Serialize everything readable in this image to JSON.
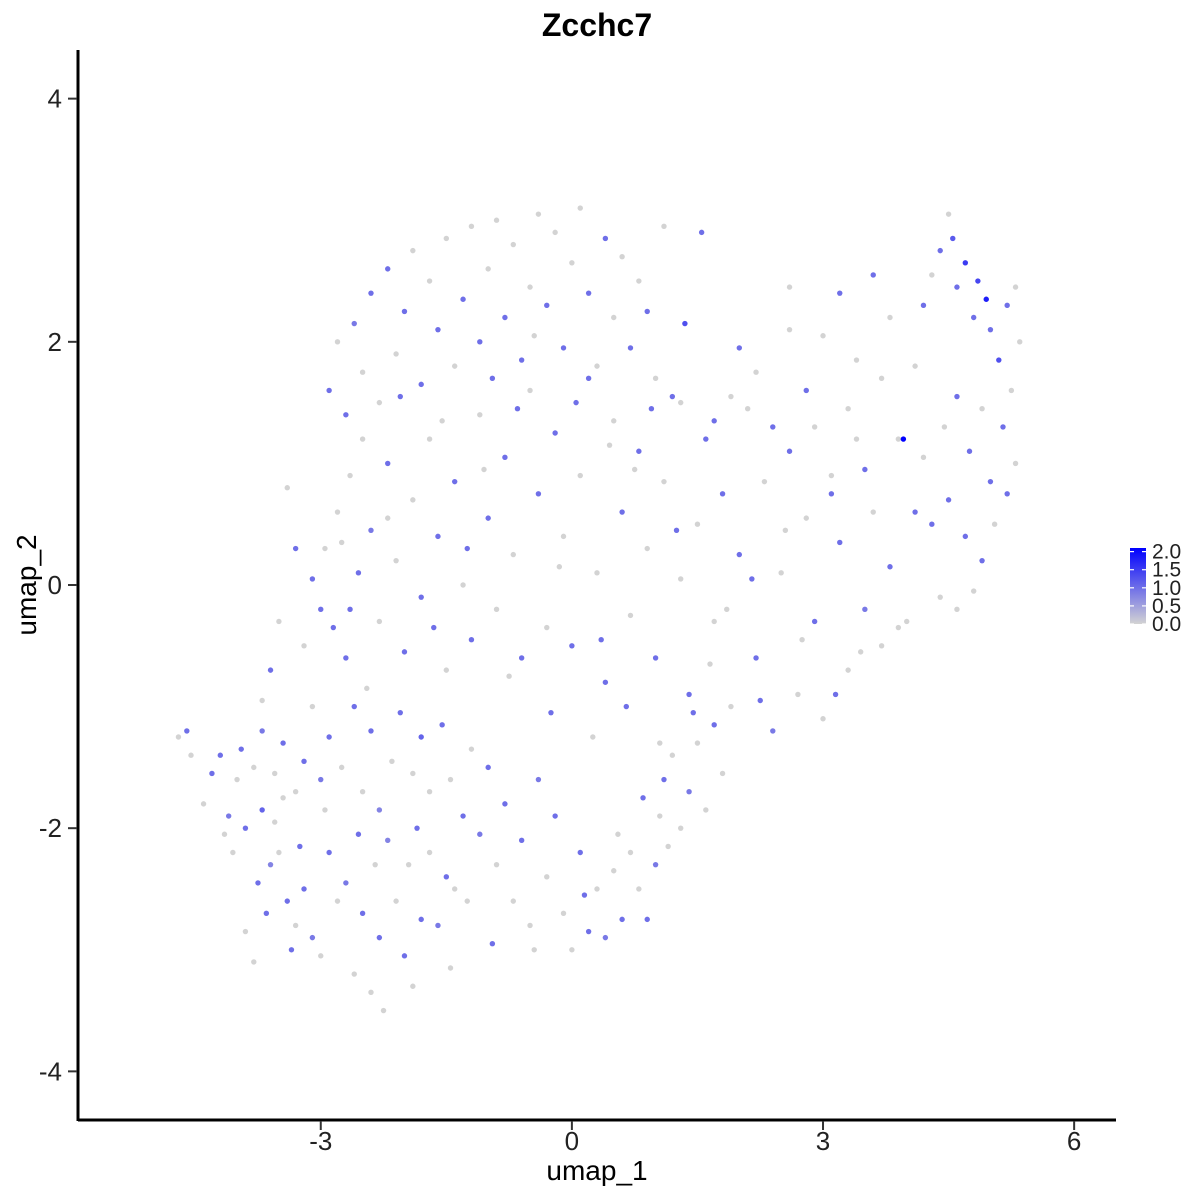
{
  "chart_data": {
    "type": "scatter",
    "title": "Zcchc7",
    "xlabel": "umap_1",
    "ylabel": "umap_2",
    "xlim": [
      -5.9,
      6.5
    ],
    "ylim": [
      -4.4,
      4.4
    ],
    "xticks": [
      -3,
      0,
      3,
      6
    ],
    "xtick_labels": [
      "-3",
      "0",
      "3",
      "6"
    ],
    "yticks": [
      -4,
      -2,
      0,
      2,
      4
    ],
    "ytick_labels": [
      "-4",
      "-2",
      "0",
      "2",
      "4"
    ],
    "grid": false,
    "legend": {
      "placement": "right",
      "type": "colorbar",
      "min": 0.0,
      "max": 2.1,
      "ticks": [
        0.0,
        0.5,
        1.0,
        1.5,
        2.0
      ],
      "tick_labels": [
        "0.0",
        "0.5",
        "1.0",
        "1.5",
        "2.0"
      ],
      "color_low": "#d3d3d3",
      "color_high": "#0000ff"
    },
    "points": [
      [
        -4.6,
        -1.2,
        1.0
      ],
      [
        -4.7,
        -1.25,
        0.0
      ],
      [
        -4.55,
        -1.4,
        0.0
      ],
      [
        -4.4,
        -1.8,
        0.0
      ],
      [
        -4.2,
        -1.4,
        1.0
      ],
      [
        -4.1,
        -1.9,
        0.9
      ],
      [
        -4.05,
        -2.2,
        0.0
      ],
      [
        -3.9,
        -2.0,
        1.0
      ],
      [
        -3.7,
        -1.85,
        1.1
      ],
      [
        -3.6,
        -2.3,
        0.8
      ],
      [
        -3.5,
        -2.2,
        0.0
      ],
      [
        -3.4,
        -2.6,
        1.0
      ],
      [
        -3.3,
        -2.8,
        0.0
      ],
      [
        -3.2,
        -2.5,
        1.0
      ],
      [
        -3.1,
        -2.9,
        0.9
      ],
      [
        -3.0,
        -3.05,
        0.0
      ],
      [
        -2.9,
        -2.2,
        1.0
      ],
      [
        -2.8,
        -2.6,
        0.0
      ],
      [
        -2.7,
        -2.45,
        0.9
      ],
      [
        -2.6,
        -3.2,
        0.0
      ],
      [
        -2.5,
        -2.7,
        1.0
      ],
      [
        -2.4,
        -3.35,
        0.0
      ],
      [
        -2.3,
        -2.9,
        1.0
      ],
      [
        -2.25,
        -3.5,
        0.0
      ],
      [
        -2.2,
        -2.1,
        0.8
      ],
      [
        -2.1,
        -2.6,
        0.0
      ],
      [
        -2.0,
        -3.05,
        1.0
      ],
      [
        -1.95,
        -2.3,
        0.0
      ],
      [
        -1.9,
        -3.3,
        0.0
      ],
      [
        -1.8,
        -2.75,
        1.0
      ],
      [
        -1.7,
        -2.2,
        0.0
      ],
      [
        -1.6,
        -2.8,
        0.9
      ],
      [
        -1.5,
        -2.4,
        1.0
      ],
      [
        -1.45,
        -3.15,
        0.0
      ],
      [
        -1.4,
        -2.5,
        0.0
      ],
      [
        -3.9,
        -2.85,
        0.0
      ],
      [
        -3.8,
        -3.1,
        0.0
      ],
      [
        -3.65,
        -2.7,
        1.0
      ],
      [
        -3.45,
        -1.75,
        0.0
      ],
      [
        -3.35,
        -3.0,
        1.0
      ],
      [
        -4.0,
        -1.6,
        0.0
      ],
      [
        -3.95,
        -1.35,
        1.0
      ],
      [
        -3.8,
        -1.5,
        0.0
      ],
      [
        -3.7,
        -1.2,
        0.9
      ],
      [
        -3.55,
        -1.55,
        0.0
      ],
      [
        -3.45,
        -1.3,
        1.0
      ],
      [
        -3.3,
        -1.7,
        0.0
      ],
      [
        -3.2,
        -1.45,
        1.0
      ],
      [
        -3.1,
        -1.0,
        0.0
      ],
      [
        -3.0,
        -1.6,
        0.9
      ],
      [
        -2.9,
        -1.25,
        1.0
      ],
      [
        -2.75,
        -1.5,
        0.0
      ],
      [
        -2.6,
        -1.0,
        1.0
      ],
      [
        -2.5,
        -1.7,
        0.0
      ],
      [
        -2.4,
        -1.2,
        1.0
      ],
      [
        -2.3,
        -1.85,
        0.8
      ],
      [
        -2.15,
        -1.45,
        0.0
      ],
      [
        -2.05,
        -1.05,
        1.0
      ],
      [
        -1.9,
        -1.55,
        0.0
      ],
      [
        -1.8,
        -1.25,
        1.1
      ],
      [
        -1.7,
        -1.7,
        0.0
      ],
      [
        -1.55,
        -1.15,
        1.0
      ],
      [
        -1.45,
        -1.6,
        0.0
      ],
      [
        -1.3,
        -1.9,
        1.0
      ],
      [
        -1.2,
        -1.35,
        0.0
      ],
      [
        -1.1,
        -2.05,
        0.9
      ],
      [
        -1.0,
        -1.5,
        1.0
      ],
      [
        -0.9,
        -2.3,
        0.0
      ],
      [
        -0.8,
        -1.8,
        1.0
      ],
      [
        -0.7,
        -2.6,
        0.0
      ],
      [
        -0.6,
        -2.1,
        1.0
      ],
      [
        -0.5,
        -2.8,
        0.0
      ],
      [
        -0.4,
        -1.6,
        0.9
      ],
      [
        -0.3,
        -2.4,
        0.0
      ],
      [
        -0.2,
        -1.9,
        1.0
      ],
      [
        -0.1,
        -2.7,
        0.0
      ],
      [
        0.0,
        -3.0,
        0.0
      ],
      [
        0.1,
        -2.2,
        1.0
      ],
      [
        0.2,
        -2.85,
        1.0
      ],
      [
        0.3,
        -2.5,
        0.0
      ],
      [
        0.4,
        -2.9,
        0.9
      ],
      [
        0.5,
        -2.35,
        0.0
      ],
      [
        0.6,
        -2.75,
        1.0
      ],
      [
        0.7,
        -2.2,
        0.0
      ],
      [
        0.8,
        -2.5,
        0.0
      ],
      [
        0.9,
        -2.75,
        1.0
      ],
      [
        1.0,
        -2.3,
        0.9
      ],
      [
        1.05,
        -1.9,
        0.0
      ],
      [
        1.1,
        -1.6,
        1.0
      ],
      [
        1.2,
        -1.4,
        0.0
      ],
      [
        1.3,
        -2.0,
        0.0
      ],
      [
        1.4,
        -1.7,
        0.9
      ],
      [
        1.5,
        -1.3,
        0.0
      ],
      [
        1.6,
        -1.85,
        0.0
      ],
      [
        1.7,
        -1.15,
        1.0
      ],
      [
        1.8,
        -1.55,
        0.0
      ],
      [
        -3.0,
        -0.2,
        1.0
      ],
      [
        -2.95,
        0.3,
        0.0
      ],
      [
        -2.85,
        -0.35,
        1.0
      ],
      [
        -2.8,
        0.6,
        0.0
      ],
      [
        -2.7,
        -0.6,
        1.0
      ],
      [
        -2.65,
        0.9,
        0.0
      ],
      [
        -2.55,
        0.1,
        1.0
      ],
      [
        -2.45,
        -0.85,
        0.0
      ],
      [
        -2.4,
        0.45,
        0.9
      ],
      [
        -2.3,
        -0.3,
        0.0
      ],
      [
        -2.2,
        1.0,
        1.0
      ],
      [
        -2.1,
        0.2,
        0.0
      ],
      [
        -2.0,
        -0.55,
        1.0
      ],
      [
        -1.9,
        0.7,
        0.0
      ],
      [
        -1.8,
        -0.1,
        1.0
      ],
      [
        -1.7,
        1.2,
        0.0
      ],
      [
        -1.6,
        0.4,
        1.0
      ],
      [
        -1.5,
        -0.7,
        0.0
      ],
      [
        -1.4,
        0.85,
        1.0
      ],
      [
        -1.3,
        0.0,
        0.0
      ],
      [
        -1.2,
        -0.45,
        1.0
      ],
      [
        -1.1,
        1.4,
        0.0
      ],
      [
        -1.0,
        0.55,
        1.0
      ],
      [
        -0.9,
        -0.2,
        0.0
      ],
      [
        -0.8,
        1.05,
        1.0
      ],
      [
        -0.7,
        0.25,
        0.0
      ],
      [
        -0.6,
        -0.6,
        1.0
      ],
      [
        -0.5,
        1.6,
        0.0
      ],
      [
        -0.4,
        0.75,
        1.0
      ],
      [
        -0.3,
        -0.35,
        0.0
      ],
      [
        -0.2,
        1.25,
        1.0
      ],
      [
        -0.1,
        0.4,
        0.0
      ],
      [
        0.0,
        -0.5,
        1.0
      ],
      [
        0.1,
        0.9,
        0.0
      ],
      [
        0.2,
        1.7,
        1.0
      ],
      [
        0.3,
        0.1,
        0.0
      ],
      [
        0.4,
        -0.8,
        1.0
      ],
      [
        0.5,
        1.35,
        0.0
      ],
      [
        0.6,
        0.6,
        1.0
      ],
      [
        0.7,
        -0.25,
        0.0
      ],
      [
        0.8,
        1.1,
        1.0
      ],
      [
        0.9,
        0.3,
        0.0
      ],
      [
        1.0,
        -0.6,
        1.0
      ],
      [
        1.1,
        0.85,
        0.0
      ],
      [
        1.2,
        1.55,
        1.0
      ],
      [
        1.3,
        0.05,
        0.0
      ],
      [
        1.4,
        -0.9,
        1.0
      ],
      [
        1.5,
        0.5,
        0.0
      ],
      [
        1.6,
        1.2,
        1.0
      ],
      [
        1.7,
        -0.3,
        0.0
      ],
      [
        1.8,
        0.75,
        1.0
      ],
      [
        1.9,
        -1.0,
        0.0
      ],
      [
        2.0,
        0.25,
        1.0
      ],
      [
        2.1,
        1.45,
        0.0
      ],
      [
        2.2,
        -0.6,
        1.0
      ],
      [
        2.3,
        0.85,
        0.0
      ],
      [
        2.4,
        -1.2,
        0.9
      ],
      [
        2.5,
        0.1,
        0.0
      ],
      [
        2.6,
        1.1,
        1.0
      ],
      [
        2.7,
        -0.9,
        0.0
      ],
      [
        2.8,
        0.55,
        0.0
      ],
      [
        2.9,
        -0.3,
        1.0
      ],
      [
        3.0,
        -1.1,
        0.0
      ],
      [
        3.1,
        0.9,
        0.0
      ],
      [
        3.2,
        0.35,
        1.0
      ],
      [
        3.3,
        -0.7,
        0.0
      ],
      [
        3.4,
        1.2,
        0.0
      ],
      [
        3.5,
        -0.2,
        0.9
      ],
      [
        3.6,
        0.6,
        0.0
      ],
      [
        3.7,
        -0.5,
        0.0
      ],
      [
        3.8,
        0.15,
        1.0
      ],
      [
        3.9,
        -0.35,
        0.0
      ],
      [
        -2.9,
        1.6,
        1.0
      ],
      [
        -2.8,
        2.0,
        0.0
      ],
      [
        -2.7,
        1.4,
        1.0
      ],
      [
        -2.6,
        2.15,
        0.9
      ],
      [
        -2.5,
        1.75,
        0.0
      ],
      [
        -2.4,
        2.4,
        1.0
      ],
      [
        -2.3,
        1.5,
        0.0
      ],
      [
        -2.2,
        2.6,
        1.0
      ],
      [
        -2.1,
        1.9,
        0.0
      ],
      [
        -2.0,
        2.25,
        1.0
      ],
      [
        -1.9,
        2.75,
        0.0
      ],
      [
        -1.8,
        1.65,
        1.0
      ],
      [
        -1.7,
        2.5,
        0.0
      ],
      [
        -1.6,
        2.1,
        1.0
      ],
      [
        -1.5,
        2.85,
        0.0
      ],
      [
        -1.4,
        1.8,
        0.0
      ],
      [
        -1.3,
        2.35,
        1.0
      ],
      [
        -1.2,
        2.95,
        0.0
      ],
      [
        -1.1,
        2.0,
        1.0
      ],
      [
        -1.0,
        2.6,
        0.0
      ],
      [
        -0.9,
        3.0,
        0.0
      ],
      [
        -0.8,
        2.2,
        1.0
      ],
      [
        -0.7,
        2.8,
        0.0
      ],
      [
        -0.6,
        1.85,
        1.0
      ],
      [
        -0.5,
        2.45,
        0.0
      ],
      [
        -0.4,
        3.05,
        0.0
      ],
      [
        -0.3,
        2.3,
        1.0
      ],
      [
        -0.2,
        2.9,
        0.0
      ],
      [
        -0.1,
        1.95,
        1.0
      ],
      [
        0.0,
        2.65,
        0.0
      ],
      [
        0.1,
        3.1,
        0.0
      ],
      [
        0.2,
        2.4,
        1.0
      ],
      [
        0.3,
        1.8,
        0.0
      ],
      [
        0.4,
        2.85,
        1.0
      ],
      [
        0.5,
        2.2,
        0.0
      ],
      [
        0.6,
        2.7,
        0.0
      ],
      [
        0.7,
        1.95,
        1.0
      ],
      [
        0.8,
        2.5,
        0.0
      ],
      [
        0.9,
        2.25,
        1.0
      ],
      [
        1.0,
        1.7,
        0.0
      ],
      [
        1.1,
        2.95,
        0.0
      ],
      [
        1.35,
        2.15,
        1.3
      ],
      [
        1.55,
        2.9,
        1.0
      ],
      [
        1.3,
        1.5,
        0.0
      ],
      [
        1.7,
        1.35,
        1.0
      ],
      [
        1.9,
        1.55,
        0.0
      ],
      [
        2.0,
        1.95,
        1.0
      ],
      [
        2.2,
        1.75,
        0.0
      ],
      [
        2.4,
        1.3,
        1.0
      ],
      [
        2.6,
        2.1,
        0.0
      ],
      [
        2.8,
        1.6,
        1.0
      ],
      [
        3.0,
        2.05,
        0.0
      ],
      [
        3.2,
        2.4,
        1.0
      ],
      [
        3.4,
        1.85,
        0.0
      ],
      [
        3.6,
        2.55,
        1.0
      ],
      [
        3.8,
        2.2,
        0.0
      ],
      [
        2.6,
        2.45,
        0.0
      ],
      [
        2.9,
        1.3,
        0.0
      ],
      [
        3.1,
        0.75,
        1.0
      ],
      [
        3.3,
        1.45,
        0.0
      ],
      [
        3.5,
        0.95,
        1.0
      ],
      [
        3.7,
        1.7,
        0.0
      ],
      [
        3.9,
        1.2,
        0.0
      ],
      [
        3.96,
        1.2,
        2.1
      ],
      [
        4.1,
        1.8,
        0.0
      ],
      [
        4.2,
        2.3,
        1.0
      ],
      [
        4.3,
        2.55,
        0.0
      ],
      [
        4.4,
        2.75,
        1.0
      ],
      [
        4.5,
        3.05,
        0.0
      ],
      [
        4.55,
        2.85,
        1.2
      ],
      [
        4.6,
        2.45,
        1.0
      ],
      [
        4.7,
        2.65,
        1.5
      ],
      [
        4.8,
        2.2,
        1.0
      ],
      [
        4.85,
        2.5,
        1.4
      ],
      [
        4.95,
        2.35,
        1.8
      ],
      [
        5.0,
        2.1,
        1.0
      ],
      [
        5.1,
        1.85,
        1.3
      ],
      [
        5.2,
        2.3,
        1.0
      ],
      [
        5.3,
        2.45,
        0.0
      ],
      [
        5.35,
        2.0,
        0.0
      ],
      [
        5.25,
        1.6,
        0.0
      ],
      [
        5.15,
        1.3,
        1.0
      ],
      [
        5.3,
        1.0,
        0.0
      ],
      [
        5.2,
        0.75,
        1.0
      ],
      [
        5.05,
        0.5,
        0.0
      ],
      [
        4.9,
        0.2,
        1.0
      ],
      [
        4.8,
        -0.05,
        0.0
      ],
      [
        4.7,
        0.4,
        1.0
      ],
      [
        4.6,
        -0.2,
        0.0
      ],
      [
        4.5,
        0.7,
        1.0
      ],
      [
        4.4,
        -0.1,
        0.0
      ],
      [
        4.3,
        0.5,
        1.0
      ],
      [
        4.2,
        1.05,
        0.0
      ],
      [
        4.1,
        0.6,
        1.0
      ],
      [
        4.0,
        -0.3,
        0.0
      ],
      [
        4.6,
        1.55,
        1.0
      ],
      [
        4.45,
        1.3,
        0.0
      ],
      [
        4.75,
        1.1,
        1.0
      ],
      [
        4.9,
        1.45,
        0.0
      ],
      [
        5.0,
        0.85,
        1.0
      ],
      [
        -4.3,
        -1.55,
        1.0
      ],
      [
        -4.15,
        -2.05,
        0.0
      ],
      [
        -3.75,
        -2.45,
        1.0
      ],
      [
        -3.55,
        -1.95,
        0.0
      ],
      [
        -3.25,
        -2.15,
        1.0
      ],
      [
        -2.95,
        -1.85,
        0.0
      ],
      [
        -2.55,
        -2.05,
        1.0
      ],
      [
        -2.35,
        -2.3,
        0.0
      ],
      [
        -1.85,
        -2.0,
        1.0
      ],
      [
        -1.25,
        -2.6,
        0.0
      ],
      [
        -0.95,
        -2.95,
        1.0
      ],
      [
        -0.45,
        -3.0,
        0.0
      ],
      [
        0.15,
        -2.55,
        1.0
      ],
      [
        0.55,
        -2.05,
        0.0
      ],
      [
        0.85,
        -1.75,
        1.0
      ],
      [
        1.15,
        -2.15,
        0.0
      ],
      [
        -2.65,
        -0.2,
        1.0
      ],
      [
        -2.2,
        0.55,
        0.0
      ],
      [
        -1.65,
        -0.35,
        1.0
      ],
      [
        -1.05,
        0.95,
        0.0
      ],
      [
        -0.65,
        1.45,
        1.0
      ],
      [
        -0.15,
        0.15,
        0.0
      ],
      [
        0.35,
        -0.45,
        1.0
      ],
      [
        0.75,
        0.95,
        0.0
      ],
      [
        1.25,
        0.45,
        1.0
      ],
      [
        1.65,
        -0.65,
        0.0
      ],
      [
        2.15,
        0.05,
        1.0
      ],
      [
        2.55,
        0.45,
        0.0
      ],
      [
        -2.5,
        1.2,
        0.0
      ],
      [
        -2.05,
        1.55,
        1.0
      ],
      [
        -1.55,
        1.35,
        0.0
      ],
      [
        -0.95,
        1.7,
        1.0
      ],
      [
        -0.45,
        2.05,
        0.0
      ],
      [
        0.05,
        1.5,
        1.0
      ],
      [
        0.45,
        1.15,
        0.0
      ],
      [
        0.95,
        1.45,
        1.0
      ],
      [
        -1.25,
        0.3,
        1.0
      ],
      [
        -0.75,
        -0.75,
        0.0
      ],
      [
        -0.25,
        -1.05,
        1.0
      ],
      [
        0.25,
        -1.25,
        0.0
      ],
      [
        0.65,
        -1.0,
        1.0
      ],
      [
        1.05,
        -1.3,
        0.0
      ],
      [
        1.45,
        -1.05,
        1.0
      ],
      [
        1.85,
        -0.2,
        0.0
      ],
      [
        2.25,
        -0.95,
        1.0
      ],
      [
        2.75,
        -0.45,
        0.0
      ],
      [
        3.15,
        -0.9,
        1.0
      ],
      [
        3.45,
        -0.55,
        0.0
      ],
      [
        -3.4,
        0.8,
        0.0
      ],
      [
        -3.3,
        0.3,
        1.0
      ],
      [
        -3.2,
        -0.5,
        0.0
      ],
      [
        -3.5,
        -0.3,
        0.0
      ],
      [
        -3.6,
        -0.7,
        1.0
      ],
      [
        -3.7,
        -0.95,
        0.0
      ],
      [
        -3.1,
        0.05,
        1.0
      ],
      [
        -2.75,
        0.35,
        0.0
      ]
    ]
  }
}
